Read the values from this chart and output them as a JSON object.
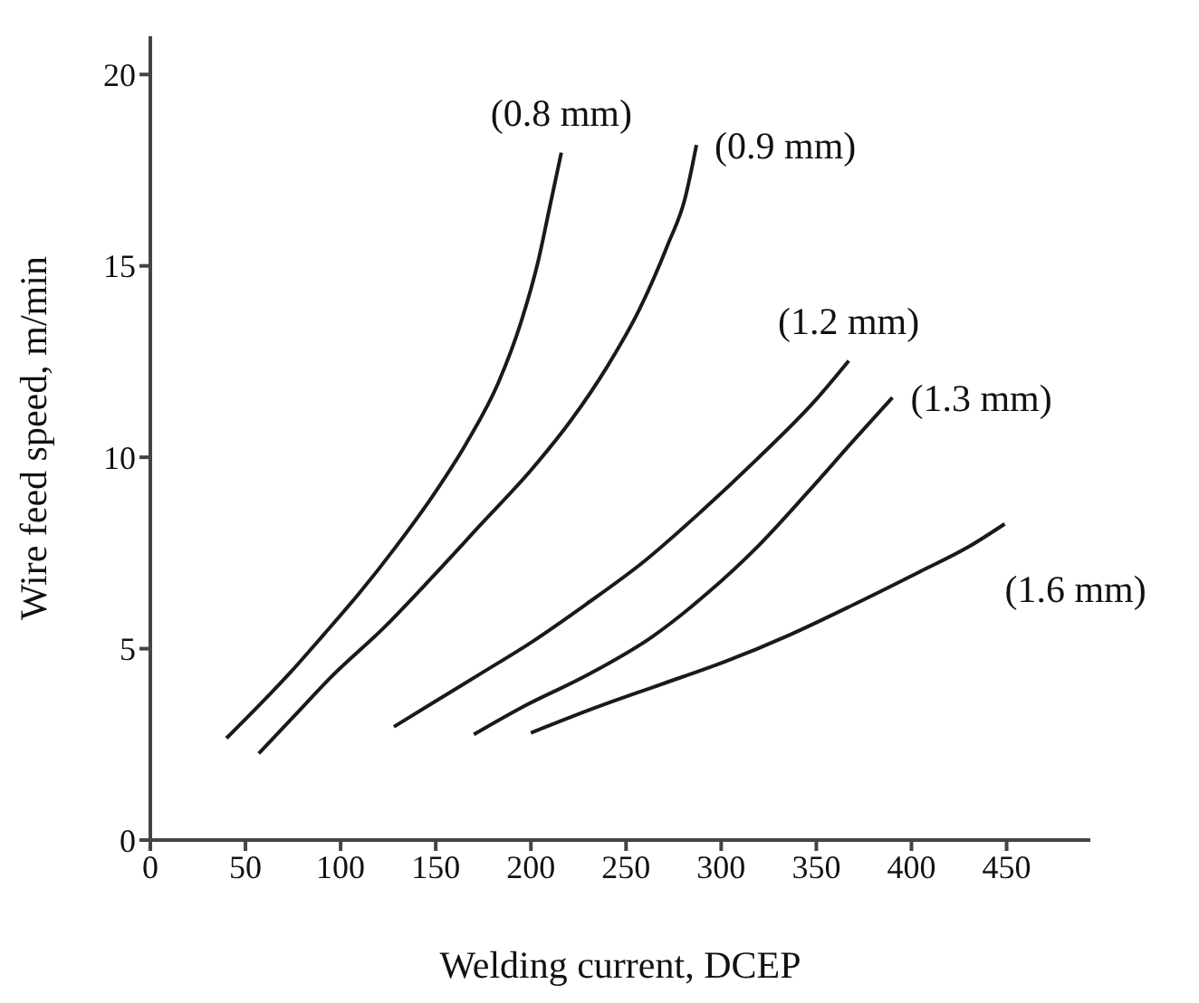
{
  "chart_data": {
    "type": "line",
    "xlabel": "Welding current, DCEP",
    "ylabel": "Wire feed speed, m/min",
    "xlim": [
      0,
      494
    ],
    "xticks": [
      0,
      50,
      100,
      150,
      200,
      250,
      300,
      350,
      400,
      450
    ],
    "ylim": [
      0,
      21
    ],
    "yticks": [
      0,
      5,
      10,
      15,
      20
    ],
    "marker": "none",
    "line_style": "solid",
    "series": [
      {
        "name": "(0.8 mm)",
        "color": "#1a1a1a",
        "x": [
          40,
          56,
          74,
          91,
          110,
          129,
          148,
          166,
          183,
          195,
          204,
          210,
          216
        ],
        "values": [
          2.66,
          3.46,
          4.4,
          5.36,
          6.46,
          7.66,
          8.96,
          10.36,
          11.96,
          13.56,
          15.16,
          16.56,
          17.96
        ]
      },
      {
        "name": "(0.9 mm)",
        "color": "#1a1a1a",
        "x": [
          57,
          76,
          95,
          123,
          148,
          174,
          200,
          221,
          240,
          257,
          272,
          281,
          287
        ],
        "values": [
          2.26,
          3.26,
          4.26,
          5.56,
          6.86,
          8.26,
          9.66,
          10.96,
          12.36,
          13.86,
          15.56,
          16.76,
          18.16
        ]
      },
      {
        "name": "(1.2 mm)",
        "color": "#1a1a1a",
        "x": [
          128,
          149,
          174,
          200,
          229,
          259,
          289,
          319,
          349,
          367
        ],
        "values": [
          2.96,
          3.6,
          4.36,
          5.16,
          6.16,
          7.26,
          8.56,
          9.96,
          11.46,
          12.52
        ]
      },
      {
        "name": "(1.3 mm)",
        "color": "#1a1a1a",
        "x": [
          170,
          195,
          230,
          264,
          293,
          319,
          345,
          370,
          390
        ],
        "values": [
          2.76,
          3.46,
          4.32,
          5.32,
          6.46,
          7.66,
          9.06,
          10.46,
          11.56
        ]
      },
      {
        "name": "(1.6 mm)",
        "color": "#1a1a1a",
        "x": [
          200,
          234,
          268,
          302,
          336,
          370,
          404,
          430,
          449
        ],
        "values": [
          2.8,
          3.46,
          4.06,
          4.66,
          5.36,
          6.16,
          7.0,
          7.66,
          8.26
        ]
      }
    ]
  }
}
